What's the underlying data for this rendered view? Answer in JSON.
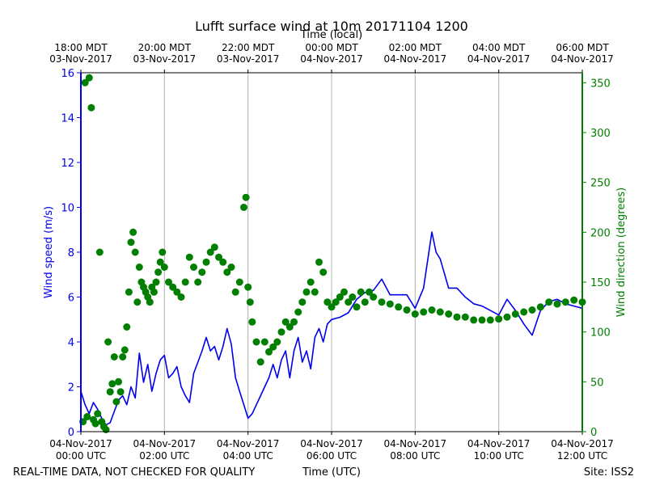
{
  "chart_data": {
    "type": "line",
    "title": "Lufft surface wind at 10m 20171104 1200",
    "top_axis_label": "Time (local)",
    "xlabel": "Time (UTC)",
    "ylabel_left": "Wind speed (m/s)",
    "ylabel_right": "Wind direction (degrees)",
    "footer_left": "REAL-TIME DATA, NOT CHECKED FOR QUALITY",
    "footer_right": "Site: ISS2",
    "x_range_hours": [
      0,
      12
    ],
    "ylim_left": [
      0,
      16
    ],
    "ylim_right": [
      0,
      360
    ],
    "y_ticks_left": [
      0,
      2,
      4,
      6,
      8,
      10,
      12,
      14,
      16
    ],
    "y_ticks_right": [
      0,
      50,
      100,
      150,
      200,
      250,
      300,
      350
    ],
    "x_ticks_bottom": [
      {
        "hour": 0,
        "line1": "04-Nov-2017",
        "line2": "00:00 UTC"
      },
      {
        "hour": 2,
        "line1": "04-Nov-2017",
        "line2": "02:00 UTC"
      },
      {
        "hour": 4,
        "line1": "04-Nov-2017",
        "line2": "04:00 UTC"
      },
      {
        "hour": 6,
        "line1": "04-Nov-2017",
        "line2": "06:00 UTC"
      },
      {
        "hour": 8,
        "line1": "04-Nov-2017",
        "line2": "08:00 UTC"
      },
      {
        "hour": 10,
        "line1": "04-Nov-2017",
        "line2": "10:00 UTC"
      },
      {
        "hour": 12,
        "line1": "04-Nov-2017",
        "line2": "12:00 UTC"
      }
    ],
    "x_ticks_top": [
      {
        "hour": 0,
        "line1": "18:00 MDT",
        "line2": "03-Nov-2017"
      },
      {
        "hour": 2,
        "line1": "20:00 MDT",
        "line2": "03-Nov-2017"
      },
      {
        "hour": 4,
        "line1": "22:00 MDT",
        "line2": "03-Nov-2017"
      },
      {
        "hour": 6,
        "line1": "00:00 MDT",
        "line2": "04-Nov-2017"
      },
      {
        "hour": 8,
        "line1": "02:00 MDT",
        "line2": "04-Nov-2017"
      },
      {
        "hour": 10,
        "line1": "04:00 MDT",
        "line2": "04-Nov-2017"
      },
      {
        "hour": 12,
        "line1": "06:00 MDT",
        "line2": "04-Nov-2017"
      }
    ],
    "grid": "vertical",
    "colors": {
      "speed": "#0000ee",
      "direction": "#007f00",
      "grid": "#b0b0b0"
    },
    "series": [
      {
        "name": "Wind speed",
        "axis": "left",
        "style": "line",
        "hours": [
          0,
          0.1,
          0.2,
          0.3,
          0.4,
          0.5,
          0.6,
          0.7,
          0.8,
          0.9,
          1.0,
          1.1,
          1.2,
          1.3,
          1.4,
          1.5,
          1.6,
          1.7,
          1.8,
          1.9,
          2.0,
          2.1,
          2.2,
          2.3,
          2.4,
          2.5,
          2.6,
          2.7,
          2.8,
          2.9,
          3.0,
          3.1,
          3.2,
          3.3,
          3.4,
          3.5,
          3.6,
          3.7,
          3.8,
          3.9,
          4.0,
          4.1,
          4.2,
          4.3,
          4.4,
          4.5,
          4.6,
          4.7,
          4.8,
          4.9,
          5.0,
          5.1,
          5.2,
          5.3,
          5.4,
          5.5,
          5.6,
          5.7,
          5.8,
          5.9,
          6.0,
          6.2,
          6.4,
          6.6,
          6.8,
          7.0,
          7.2,
          7.4,
          7.6,
          7.8,
          8.0,
          8.2,
          8.4,
          8.5,
          8.6,
          8.8,
          9.0,
          9.2,
          9.4,
          9.6,
          9.8,
          10.0,
          10.2,
          10.4,
          10.6,
          10.8,
          11.0,
          11.2,
          11.4,
          11.6,
          11.8,
          12.0
        ],
        "values": [
          1.8,
          1.2,
          0.8,
          1.3,
          1.0,
          0.6,
          0.3,
          0.4,
          0.9,
          1.4,
          1.6,
          1.2,
          2.0,
          1.5,
          3.5,
          2.2,
          3.0,
          1.8,
          2.6,
          3.2,
          3.4,
          2.4,
          2.6,
          2.9,
          2.0,
          1.6,
          1.3,
          2.6,
          3.1,
          3.6,
          4.2,
          3.6,
          3.8,
          3.2,
          3.8,
          4.6,
          3.9,
          2.4,
          1.8,
          1.2,
          0.6,
          0.8,
          1.2,
          1.6,
          2.0,
          2.4,
          3.0,
          2.4,
          3.2,
          3.6,
          2.4,
          3.6,
          4.2,
          3.1,
          3.6,
          2.8,
          4.2,
          4.6,
          4.0,
          4.8,
          5.0,
          5.1,
          5.3,
          5.9,
          6.2,
          6.3,
          6.8,
          6.1,
          6.1,
          6.1,
          5.5,
          6.4,
          8.9,
          8.0,
          7.7,
          6.4,
          6.4,
          6.0,
          5.7,
          5.6,
          5.4,
          5.2,
          5.9,
          5.4,
          4.8,
          4.3,
          5.4,
          5.8,
          5.9,
          5.7,
          5.6,
          5.5
        ]
      },
      {
        "name": "Wind direction",
        "axis": "right",
        "style": "markers",
        "hours": [
          0.05,
          0.1,
          0.15,
          0.2,
          0.25,
          0.3,
          0.35,
          0.4,
          0.45,
          0.5,
          0.55,
          0.6,
          0.65,
          0.7,
          0.75,
          0.8,
          0.85,
          0.9,
          0.95,
          1.0,
          1.05,
          1.1,
          1.15,
          1.2,
          1.25,
          1.3,
          1.35,
          1.4,
          1.45,
          1.5,
          1.55,
          1.6,
          1.65,
          1.7,
          1.75,
          1.8,
          1.85,
          1.9,
          1.95,
          2.0,
          2.1,
          2.2,
          2.3,
          2.4,
          2.5,
          2.6,
          2.7,
          2.8,
          2.9,
          3.0,
          3.1,
          3.2,
          3.3,
          3.4,
          3.5,
          3.6,
          3.7,
          3.8,
          3.9,
          3.95,
          4.0,
          4.05,
          4.1,
          4.2,
          4.3,
          4.4,
          4.5,
          4.6,
          4.7,
          4.8,
          4.9,
          5.0,
          5.1,
          5.2,
          5.3,
          5.4,
          5.5,
          5.6,
          5.7,
          5.8,
          5.9,
          6.0,
          6.1,
          6.2,
          6.3,
          6.4,
          6.5,
          6.6,
          6.7,
          6.8,
          6.9,
          7.0,
          7.2,
          7.4,
          7.6,
          7.8,
          8.0,
          8.2,
          8.4,
          8.6,
          8.8,
          9.0,
          9.2,
          9.4,
          9.6,
          9.8,
          10.0,
          10.2,
          10.4,
          10.6,
          10.8,
          11.0,
          11.2,
          11.4,
          11.6,
          11.8,
          12.0
        ],
        "values": [
          10,
          350,
          15,
          355,
          325,
          12,
          8,
          18,
          180,
          10,
          5,
          2,
          90,
          40,
          48,
          75,
          30,
          50,
          40,
          75,
          82,
          105,
          140,
          190,
          200,
          180,
          130,
          165,
          150,
          145,
          140,
          135,
          130,
          145,
          140,
          150,
          160,
          170,
          180,
          165,
          150,
          145,
          140,
          135,
          150,
          175,
          165,
          150,
          160,
          170,
          180,
          185,
          175,
          170,
          160,
          165,
          140,
          150,
          225,
          235,
          145,
          130,
          110,
          90,
          70,
          90,
          80,
          85,
          90,
          100,
          110,
          105,
          110,
          120,
          130,
          140,
          150,
          140,
          170,
          160,
          130,
          125,
          130,
          135,
          140,
          130,
          135,
          125,
          140,
          130,
          140,
          135,
          130,
          128,
          125,
          122,
          118,
          120,
          122,
          120,
          118,
          115,
          115,
          112,
          112,
          112,
          113,
          115,
          118,
          120,
          122,
          125,
          130,
          128,
          130,
          132,
          130
        ]
      }
    ]
  }
}
